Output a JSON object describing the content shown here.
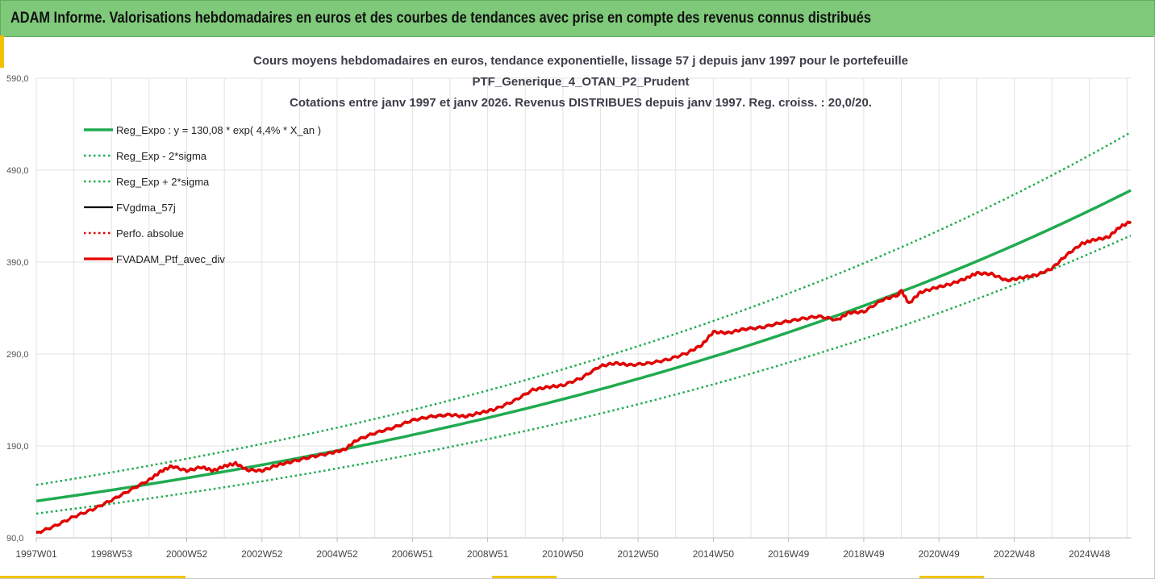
{
  "banner": {
    "title": "ADAM Informe. Valorisations hebdomadaires en euros et des courbes de tendances avec prise en compte des revenus connus distribués"
  },
  "colors": {
    "banner_bg": "#7fc97a",
    "trend": "#1fab4f",
    "band": "#1fab4f",
    "fv_black": "#000000",
    "perf_dotted": "#e00000",
    "fv_red": "#e60000",
    "grid": "#e3e3e3"
  },
  "chart_data": {
    "type": "line",
    "title_lines": [
      "Cours moyens hebdomadaires  en euros, tendance exponentielle, lissage 57 j depuis janv 1997 pour le portefeuille",
      "PTF_Generique_4_OTAN_P2_Prudent",
      "Cotations entre janv 1997 et janv 2026. Revenus DISTRIBUES depuis janv 1997. Reg. croiss. : 20,0/20."
    ],
    "xlabel": "",
    "ylabel": "",
    "x_range_years": [
      1997.0,
      2026.1
    ],
    "x_ticks": [
      {
        "year": 1997.0,
        "label": "1997W01"
      },
      {
        "year": 1999.0,
        "label": "1998W53"
      },
      {
        "year": 2001.0,
        "label": "2000W52"
      },
      {
        "year": 2003.0,
        "label": "2002W52"
      },
      {
        "year": 2005.0,
        "label": "2004W52"
      },
      {
        "year": 2007.0,
        "label": "2006W51"
      },
      {
        "year": 2009.0,
        "label": "2008W51"
      },
      {
        "year": 2011.0,
        "label": "2010W50"
      },
      {
        "year": 2013.0,
        "label": "2012W50"
      },
      {
        "year": 2015.0,
        "label": "2014W50"
      },
      {
        "year": 2017.0,
        "label": "2016W49"
      },
      {
        "year": 2019.0,
        "label": "2018W49"
      },
      {
        "year": 2021.0,
        "label": "2020W49"
      },
      {
        "year": 2023.0,
        "label": "2022W48"
      },
      {
        "year": 2025.0,
        "label": "2024W48"
      }
    ],
    "ylim": [
      90,
      590
    ],
    "y_ticks": [
      {
        "value": 90,
        "label": "90,0"
      },
      {
        "value": 190,
        "label": "190,0"
      },
      {
        "value": 290,
        "label": "290,0"
      },
      {
        "value": 390,
        "label": "390,0"
      },
      {
        "value": 490,
        "label": "490,0"
      },
      {
        "value": 590,
        "label": "590,0"
      }
    ],
    "regression": {
      "a": 130.08,
      "rate": 0.044
    },
    "band_factors": {
      "lower": 0.895,
      "upper": 1.135
    },
    "series": [
      {
        "name": "Reg_Expo : y = 130,08 * exp( 4,4% *  X_an )",
        "style": "solid",
        "color_key": "trend",
        "width": 3.5,
        "kind": "regression"
      },
      {
        "name": "Reg_Exp - 2*sigma",
        "style": "dotted",
        "color_key": "band",
        "width": 2.5,
        "kind": "lower"
      },
      {
        "name": "Reg_Exp + 2*sigma",
        "style": "dotted",
        "color_key": "band",
        "width": 2.5,
        "kind": "upper"
      },
      {
        "name": "FVgdma_57j",
        "style": "solid",
        "color_key": "fv_black",
        "width": 2.2,
        "kind": "black"
      },
      {
        "name": "Perfo. absolue",
        "style": "dotted",
        "color_key": "perf_dotted",
        "width": 2.5,
        "kind": "perf"
      },
      {
        "name": "FVADAM_Ptf_avec_div",
        "style": "solid",
        "color_key": "fv_red",
        "width": 3.2,
        "kind": "red"
      }
    ],
    "fv_points": [
      [
        1997.0,
        95
      ],
      [
        1997.5,
        103
      ],
      [
        1998.0,
        113
      ],
      [
        1998.5,
        121
      ],
      [
        1999.0,
        131
      ],
      [
        1999.5,
        142
      ],
      [
        2000.0,
        153
      ],
      [
        2000.3,
        162
      ],
      [
        2000.6,
        168
      ],
      [
        2001.0,
        163
      ],
      [
        2001.4,
        167
      ],
      [
        2001.7,
        163
      ],
      [
        2002.0,
        168
      ],
      [
        2002.3,
        171
      ],
      [
        2002.6,
        164
      ],
      [
        2003.0,
        163
      ],
      [
        2003.4,
        169
      ],
      [
        2003.8,
        173
      ],
      [
        2004.3,
        178
      ],
      [
        2004.8,
        182
      ],
      [
        2005.2,
        186
      ],
      [
        2005.5,
        196
      ],
      [
        2006.0,
        204
      ],
      [
        2006.5,
        210
      ],
      [
        2007.0,
        218
      ],
      [
        2007.5,
        222
      ],
      [
        2008.0,
        224
      ],
      [
        2008.4,
        222
      ],
      [
        2008.8,
        226
      ],
      [
        2009.2,
        230
      ],
      [
        2009.7,
        239
      ],
      [
        2010.2,
        251
      ],
      [
        2010.6,
        254
      ],
      [
        2011.0,
        256
      ],
      [
        2011.5,
        264
      ],
      [
        2012.0,
        277
      ],
      [
        2012.4,
        280
      ],
      [
        2012.8,
        278
      ],
      [
        2013.3,
        280
      ],
      [
        2013.8,
        284
      ],
      [
        2014.3,
        291
      ],
      [
        2014.7,
        300
      ],
      [
        2015.0,
        314
      ],
      [
        2015.4,
        313
      ],
      [
        2015.8,
        317
      ],
      [
        2016.3,
        319
      ],
      [
        2016.8,
        324
      ],
      [
        2017.3,
        328
      ],
      [
        2017.8,
        331
      ],
      [
        2018.3,
        327
      ],
      [
        2018.6,
        335
      ],
      [
        2019.0,
        336
      ],
      [
        2019.5,
        349
      ],
      [
        2019.9,
        354
      ],
      [
        2020.0,
        359
      ],
      [
        2020.2,
        345
      ],
      [
        2020.5,
        357
      ],
      [
        2020.9,
        362
      ],
      [
        2021.3,
        366
      ],
      [
        2021.7,
        372
      ],
      [
        2022.0,
        378
      ],
      [
        2022.4,
        377
      ],
      [
        2022.8,
        370
      ],
      [
        2023.2,
        373
      ],
      [
        2023.6,
        376
      ],
      [
        2024.0,
        383
      ],
      [
        2024.4,
        398
      ],
      [
        2024.8,
        410
      ],
      [
        2025.1,
        414
      ],
      [
        2025.5,
        417
      ],
      [
        2025.8,
        428
      ],
      [
        2026.1,
        434
      ]
    ]
  }
}
